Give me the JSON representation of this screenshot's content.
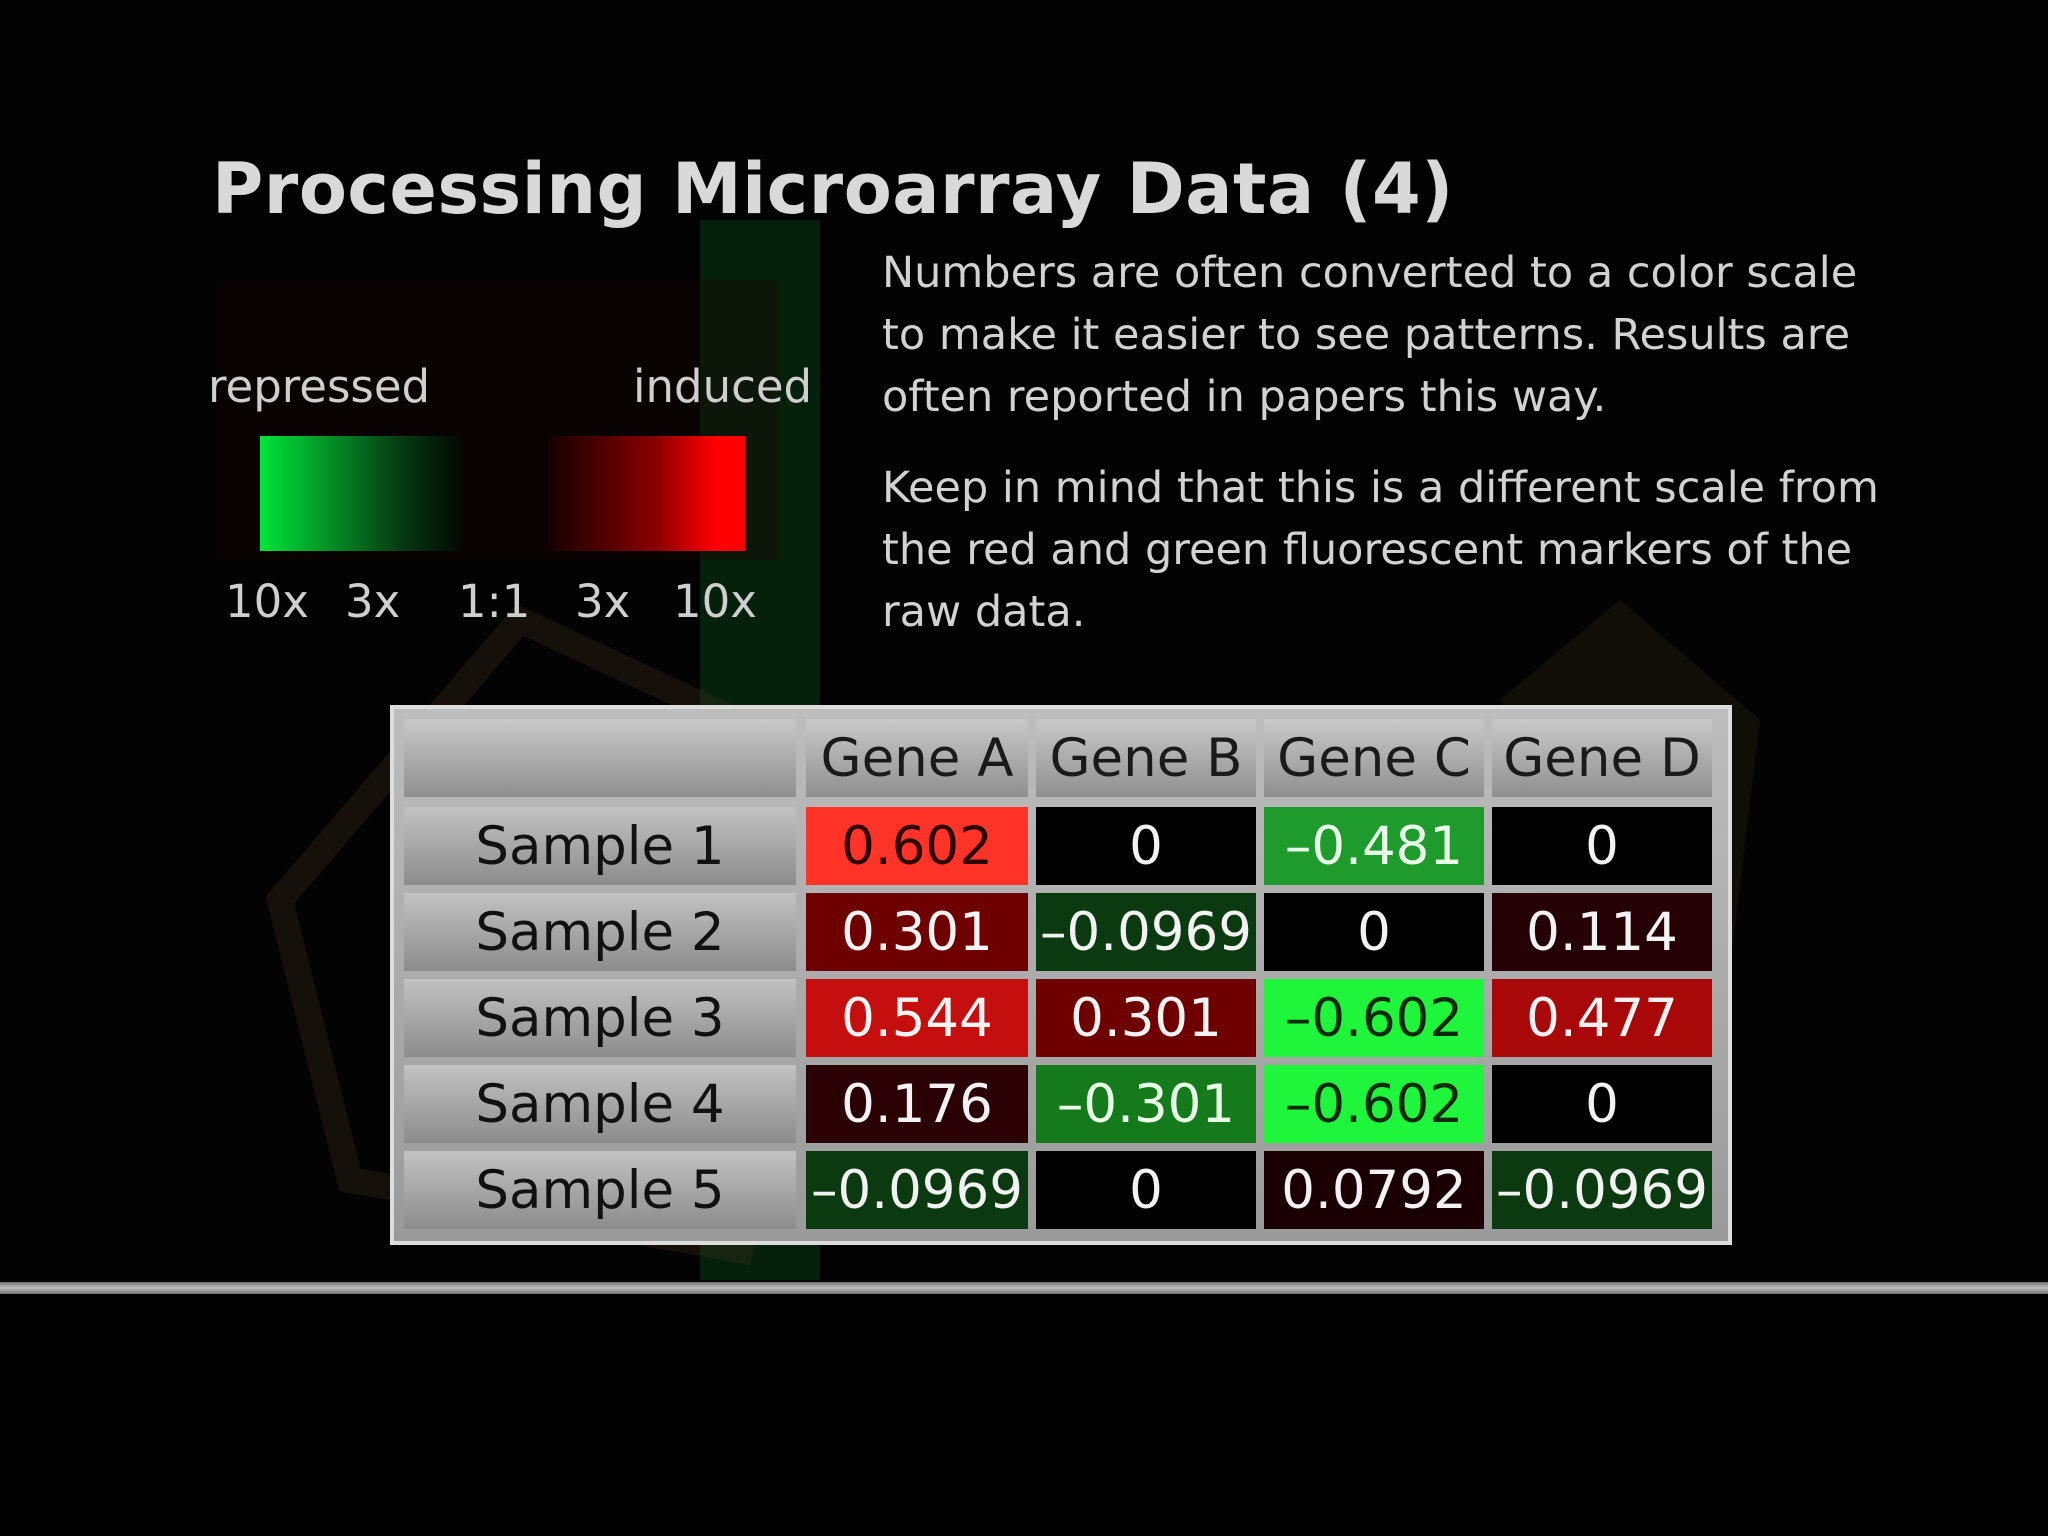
{
  "slide": {
    "title": "Processing Microarray Data (4)",
    "paragraph1": "Numbers are often converted to a color scale to make it easier to see patterns. Results are often reported in papers this way.",
    "paragraph2": "Keep in mind that this is a different scale from the red and green fluorescent markers of the raw data."
  },
  "legend": {
    "left_label": "repressed",
    "right_label": "induced",
    "repressed_color": "#00e53a",
    "induced_color": "#ff0000",
    "ticks": [
      "10x",
      "3x",
      "1:1",
      "3x",
      "10x"
    ]
  },
  "table": {
    "corner": "",
    "columns": [
      "Gene A",
      "Gene B",
      "Gene C",
      "Gene D"
    ],
    "rows": [
      {
        "label": "Sample 1",
        "cells": [
          {
            "text": "0.602",
            "bg": "#ff3328",
            "fg": "#2a0000"
          },
          {
            "text": "0",
            "bg": "#000000",
            "fg": "#f2f2f2"
          },
          {
            "text": "–0.481",
            "bg": "#1f9a2d",
            "fg": "#e8ffe8"
          },
          {
            "text": "0",
            "bg": "#000000",
            "fg": "#f2f2f2"
          }
        ]
      },
      {
        "label": "Sample 2",
        "cells": [
          {
            "text": "0.301",
            "bg": "#6e0000",
            "fg": "#f2f2f2"
          },
          {
            "text": "–0.0969",
            "bg": "#0b3a10",
            "fg": "#f2f2f2"
          },
          {
            "text": "0",
            "bg": "#000000",
            "fg": "#f2f2f2"
          },
          {
            "text": "0.114",
            "bg": "#250004",
            "fg": "#f2f2f2"
          }
        ]
      },
      {
        "label": "Sample 3",
        "cells": [
          {
            "text": "0.544",
            "bg": "#c50f0f",
            "fg": "#f2f2f2"
          },
          {
            "text": "0.301",
            "bg": "#6e0000",
            "fg": "#f2f2f2"
          },
          {
            "text": "–0.602",
            "bg": "#1ff53b",
            "fg": "#0a2a0a"
          },
          {
            "text": "0.477",
            "bg": "#a80808",
            "fg": "#f2f2f2"
          }
        ]
      },
      {
        "label": "Sample 4",
        "cells": [
          {
            "text": "0.176",
            "bg": "#2b0004",
            "fg": "#f2f2f2"
          },
          {
            "text": "–0.301",
            "bg": "#157a1b",
            "fg": "#e8ffe8"
          },
          {
            "text": "–0.602",
            "bg": "#1ff53b",
            "fg": "#0a2a0a"
          },
          {
            "text": "0",
            "bg": "#000000",
            "fg": "#f2f2f2"
          }
        ]
      },
      {
        "label": "Sample 5",
        "cells": [
          {
            "text": "–0.0969",
            "bg": "#0b3a10",
            "fg": "#f2f2f2"
          },
          {
            "text": "0",
            "bg": "#000000",
            "fg": "#f2f2f2"
          },
          {
            "text": "0.0792",
            "bg": "#1a0003",
            "fg": "#f2f2f2"
          },
          {
            "text": "–0.0969",
            "bg": "#0b3a10",
            "fg": "#f2f2f2"
          }
        ]
      }
    ]
  }
}
